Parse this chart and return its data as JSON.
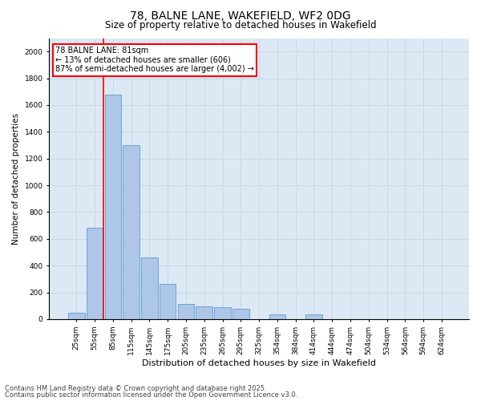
{
  "title_line1": "78, BALNE LANE, WAKEFIELD, WF2 0DG",
  "title_line2": "Size of property relative to detached houses in Wakefield",
  "xlabel": "Distribution of detached houses by size in Wakefield",
  "ylabel": "Number of detached properties",
  "categories": [
    "25sqm",
    "55sqm",
    "85sqm",
    "115sqm",
    "145sqm",
    "175sqm",
    "205sqm",
    "235sqm",
    "265sqm",
    "295sqm",
    "325sqm",
    "354sqm",
    "384sqm",
    "414sqm",
    "444sqm",
    "474sqm",
    "504sqm",
    "534sqm",
    "564sqm",
    "594sqm",
    "624sqm"
  ],
  "values": [
    50,
    680,
    1680,
    1300,
    460,
    265,
    115,
    95,
    90,
    75,
    0,
    35,
    0,
    35,
    0,
    0,
    0,
    0,
    0,
    0,
    0
  ],
  "bar_color": "#aec6e8",
  "bar_edge_color": "#5b9bd5",
  "grid_color": "#c8d8e8",
  "bg_color": "#dce9f5",
  "vline_color": "red",
  "annotation_text": "78 BALNE LANE: 81sqm\n← 13% of detached houses are smaller (606)\n87% of semi-detached houses are larger (4,002) →",
  "annotation_box_color": "red",
  "ylim": [
    0,
    2100
  ],
  "yticks": [
    0,
    200,
    400,
    600,
    800,
    1000,
    1200,
    1400,
    1600,
    1800,
    2000
  ],
  "footnote_line1": "Contains HM Land Registry data © Crown copyright and database right 2025.",
  "footnote_line2": "Contains public sector information licensed under the Open Government Licence v3.0."
}
